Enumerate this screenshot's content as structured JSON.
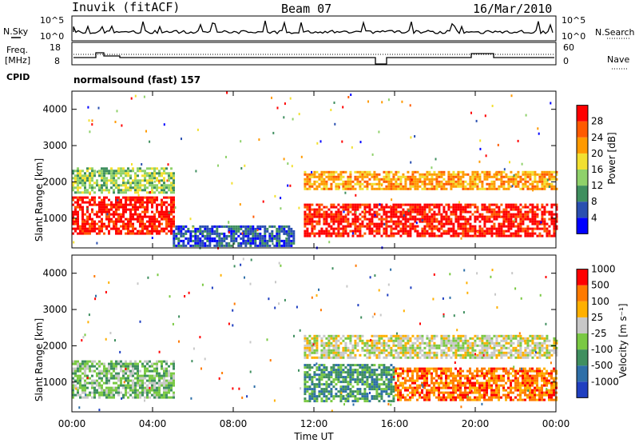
{
  "header": {
    "station": "Inuvik (fitACF)",
    "beam": "Beam 07",
    "date": "16/Mar/2010",
    "program": "normalsound (fast) 157"
  },
  "left_labels": {
    "nsky": "N.Sky",
    "freq": "Freq.",
    "freq_unit": "[MHz]",
    "cpid": "CPID"
  },
  "right_labels": {
    "nsearch": "N.Search",
    "nave": "Nave"
  },
  "noise_axis": {
    "left_ticks": [
      "10^5",
      "10^0"
    ],
    "right_ticks": [
      "10^5",
      "10^0"
    ]
  },
  "freq_axis": {
    "left_ticks": [
      "18",
      "8"
    ],
    "right_ticks": [
      "60",
      "0"
    ]
  },
  "colors": {
    "power_scale": [
      "#0000ff",
      "#2a4fb0",
      "#3f8f5f",
      "#8fd16a",
      "#f2e030",
      "#ff9a00",
      "#ff5a00",
      "#ff0000"
    ],
    "velocity_scale": [
      "#1f3fc0",
      "#2e6fa8",
      "#3f8f5f",
      "#7ac943",
      "#c8c8c8",
      "#ffb000",
      "#ff7a00",
      "#ff0000"
    ]
  },
  "chart_data": [
    {
      "type": "heatmap",
      "panel": "power",
      "ylabel": "Slant Range [km]",
      "ylim": [
        180,
        4500
      ],
      "yticks": [
        1000,
        2000,
        3000,
        4000
      ],
      "colorbar_label": "Power [dB]",
      "colorbar_ticks": [
        "4",
        "8",
        "12",
        "16",
        "20",
        "24",
        "28"
      ],
      "xlim_hours": [
        0,
        24
      ],
      "echo_regions": [
        {
          "t_start": 0.0,
          "t_end": 5.0,
          "r_min": 600,
          "r_max": 1600,
          "level": 7
        },
        {
          "t_start": 0.0,
          "t_end": 5.0,
          "r_min": 1700,
          "r_max": 2400,
          "level": 3
        },
        {
          "t_start": 5.0,
          "t_end": 11.0,
          "r_min": 250,
          "r_max": 800,
          "level": 1
        },
        {
          "t_start": 11.5,
          "t_end": 24.0,
          "r_min": 500,
          "r_max": 1400,
          "level": 7
        },
        {
          "t_start": 11.5,
          "t_end": 24.0,
          "r_min": 1800,
          "r_max": 2300,
          "level": 5
        }
      ]
    },
    {
      "type": "heatmap",
      "panel": "velocity",
      "ylabel": "Slant Range [km]",
      "ylim": [
        180,
        4500
      ],
      "yticks": [
        1000,
        2000,
        3000,
        4000
      ],
      "colorbar_label": "Velocity [m s⁻¹]",
      "colorbar_ticks": [
        "-1000",
        "-500",
        "-100",
        "-25",
        "25",
        "100",
        "500",
        "1000"
      ],
      "xlim_hours": [
        0,
        24
      ],
      "xlabel": "Time UT",
      "xtick_labels": [
        "00:00",
        "04:00",
        "08:00",
        "12:00",
        "16:00",
        "20:00",
        "00:00"
      ],
      "echo_regions": [
        {
          "t_start": 0.0,
          "t_end": 5.0,
          "r_min": 600,
          "r_max": 1600,
          "level": 3
        },
        {
          "t_start": 11.5,
          "t_end": 16.0,
          "r_min": 500,
          "r_max": 1500,
          "level": 2
        },
        {
          "t_start": 16.0,
          "t_end": 24.0,
          "r_min": 500,
          "r_max": 1400,
          "level": 6
        },
        {
          "t_start": 11.5,
          "t_end": 24.0,
          "r_min": 1700,
          "r_max": 2300,
          "level": 4
        }
      ]
    }
  ]
}
